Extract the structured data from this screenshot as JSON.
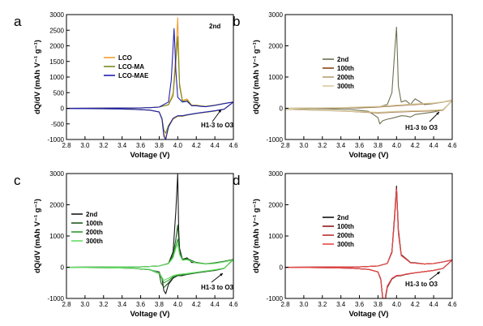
{
  "chart_data": [
    {
      "type": "line",
      "panel": "a",
      "xlabel": "Voltage (V)",
      "ylabel": "dQ/dV (mAh V⁻¹ g⁻¹)",
      "xlim": [
        2.8,
        4.6
      ],
      "ylim": [
        -1000,
        3000
      ],
      "xticks": [
        "2.8",
        "3.0",
        "3.2",
        "3.4",
        "3.6",
        "3.8",
        "4.0",
        "4.2",
        "4.4",
        "4.6"
      ],
      "yticks": [
        "-1000",
        "-500",
        "0",
        "500",
        "1000",
        "1500",
        "2000",
        "2500",
        "3000"
      ],
      "annotation_top": "2nd",
      "annotation": "H1-3 to O3",
      "legend_position": "left",
      "series": [
        {
          "name": "LCO",
          "color": "#f0a030",
          "x": [
            2.8,
            3.6,
            3.7,
            3.8,
            3.9,
            3.95,
            3.98,
            4.0,
            4.02,
            4.05,
            4.1,
            4.15,
            4.2,
            4.25,
            4.3,
            4.4,
            4.5,
            4.6,
            4.5,
            4.4,
            4.3,
            4.2,
            4.1,
            4.05,
            4.0,
            3.95,
            3.9,
            3.87,
            3.85,
            3.83,
            3.8,
            3.7,
            3.5,
            3.2,
            2.8
          ],
          "y": [
            0,
            10,
            20,
            40,
            120,
            500,
            1800,
            2900,
            800,
            250,
            300,
            100,
            100,
            80,
            60,
            100,
            150,
            200,
            -30,
            -90,
            -130,
            -170,
            -220,
            -260,
            -260,
            -350,
            -600,
            -950,
            -800,
            -350,
            -120,
            -60,
            -30,
            -15,
            -8
          ]
        },
        {
          "name": "LCO-MA",
          "color": "#7a8a20",
          "x": [
            2.8,
            3.6,
            3.7,
            3.8,
            3.9,
            3.95,
            3.98,
            4.0,
            4.02,
            4.05,
            4.1,
            4.15,
            4.2,
            4.25,
            4.3,
            4.4,
            4.5,
            4.6,
            4.5,
            4.4,
            4.3,
            4.2,
            4.1,
            4.05,
            4.0,
            3.95,
            3.9,
            3.87,
            3.85,
            3.83,
            3.8,
            3.7,
            3.5,
            3.2,
            2.8
          ],
          "y": [
            0,
            10,
            20,
            40,
            110,
            400,
            1500,
            2300,
            700,
            220,
            260,
            90,
            90,
            70,
            60,
            100,
            150,
            200,
            -30,
            -85,
            -125,
            -165,
            -215,
            -250,
            -250,
            -330,
            -550,
            -800,
            -700,
            -320,
            -120,
            -60,
            -30,
            -15,
            -8
          ]
        },
        {
          "name": "LCO-MAE",
          "color": "#2020b0",
          "x": [
            2.8,
            3.6,
            3.7,
            3.8,
            3.9,
            3.93,
            3.96,
            3.98,
            4.0,
            4.05,
            4.1,
            4.15,
            4.2,
            4.25,
            4.3,
            4.4,
            4.5,
            4.6,
            4.5,
            4.4,
            4.3,
            4.2,
            4.1,
            4.05,
            4.0,
            3.95,
            3.9,
            3.87,
            3.85,
            3.83,
            3.8,
            3.7,
            3.5,
            3.2,
            2.8
          ],
          "y": [
            0,
            10,
            20,
            40,
            200,
            900,
            2550,
            1200,
            350,
            200,
            220,
            80,
            80,
            60,
            50,
            90,
            150,
            200,
            -30,
            -80,
            -120,
            -160,
            -210,
            -240,
            -240,
            -320,
            -600,
            -1000,
            -900,
            -350,
            -120,
            -60,
            -30,
            -15,
            -8
          ]
        }
      ]
    },
    {
      "type": "line",
      "panel": "b",
      "xlabel": "Voltage (V)",
      "ylabel": "dQ/dV (mAh V⁻¹ g⁻¹)",
      "xlim": [
        2.8,
        4.6
      ],
      "ylim": [
        -1000,
        3000
      ],
      "xticks": [
        "2.8",
        "3.0",
        "3.2",
        "3.4",
        "3.6",
        "3.8",
        "4.0",
        "4.2",
        "4.4",
        "4.6"
      ],
      "yticks": [
        "-1000",
        "0",
        "1000",
        "2000",
        "3000"
      ],
      "annotation": "H1-3 to O3",
      "legend_position": "left",
      "series": [
        {
          "name": "2nd",
          "color": "#707050",
          "x": [
            2.8,
            3.6,
            3.8,
            3.9,
            3.95,
            3.98,
            4.0,
            4.02,
            4.05,
            4.1,
            4.15,
            4.2,
            4.3,
            4.4,
            4.5,
            4.6,
            4.5,
            4.4,
            4.3,
            4.2,
            4.15,
            4.1,
            4.05,
            4.0,
            3.95,
            3.9,
            3.85,
            3.82,
            3.8,
            3.7,
            3.5,
            3.2,
            2.8
          ],
          "y": [
            0,
            10,
            40,
            120,
            500,
            1800,
            2600,
            700,
            200,
            250,
            120,
            300,
            120,
            150,
            200,
            250,
            -50,
            -120,
            -160,
            -200,
            -280,
            -250,
            -240,
            -280,
            -320,
            -350,
            -400,
            -500,
            -300,
            -100,
            -40,
            -15,
            -8
          ]
        },
        {
          "name": "100th",
          "color": "#8b4513",
          "x": [
            2.8,
            3.4,
            3.8,
            4.0,
            4.2,
            4.4,
            4.5,
            4.55,
            4.6,
            4.5,
            4.4,
            4.2,
            4.0,
            3.8,
            3.4,
            2.8
          ],
          "y": [
            0,
            10,
            40,
            80,
            120,
            160,
            200,
            230,
            250,
            -60,
            -80,
            -100,
            -120,
            -150,
            -80,
            -30
          ]
        },
        {
          "name": "200th",
          "color": "#b8a070",
          "x": [
            2.8,
            3.4,
            3.8,
            4.0,
            4.2,
            4.4,
            4.5,
            4.6,
            4.5,
            4.4,
            4.2,
            4.0,
            3.8,
            3.4,
            2.8
          ],
          "y": [
            0,
            15,
            50,
            90,
            130,
            160,
            200,
            240,
            -50,
            -70,
            -90,
            -110,
            -140,
            -90,
            -30
          ]
        },
        {
          "name": "300th",
          "color": "#d8cca0",
          "x": [
            2.8,
            3.4,
            3.8,
            4.0,
            4.2,
            4.4,
            4.5,
            4.6,
            4.5,
            4.4,
            4.2,
            4.0,
            3.8,
            3.4,
            2.8
          ],
          "y": [
            0,
            20,
            60,
            100,
            140,
            170,
            210,
            240,
            -40,
            -60,
            -80,
            -100,
            -130,
            -80,
            -20
          ]
        }
      ]
    },
    {
      "type": "line",
      "panel": "c",
      "xlabel": "Voltage (V)",
      "ylabel": "dQ/dV (mAh V⁻¹ g⁻¹)",
      "xlim": [
        2.8,
        4.6
      ],
      "ylim": [
        -1000,
        3000
      ],
      "xticks": [
        "2.8",
        "3.0",
        "3.2",
        "3.4",
        "3.6",
        "3.8",
        "4.0",
        "4.2",
        "4.4",
        "4.6"
      ],
      "yticks": [
        "-1000",
        "0",
        "1000",
        "2000",
        "3000"
      ],
      "annotation": "H1-3 to O3",
      "legend_position": "left",
      "series": [
        {
          "name": "2nd",
          "color": "#1a1a1a",
          "x": [
            2.8,
            3.6,
            3.8,
            3.9,
            3.95,
            3.98,
            4.0,
            4.01,
            4.02,
            4.05,
            4.1,
            4.15,
            4.2,
            4.3,
            4.4,
            4.5,
            4.6,
            4.5,
            4.4,
            4.3,
            4.2,
            4.1,
            4.05,
            4.0,
            3.95,
            3.9,
            3.87,
            3.85,
            3.83,
            3.8,
            3.7,
            3.5,
            3.2,
            2.8
          ],
          "y": [
            0,
            10,
            40,
            120,
            500,
            1800,
            3000,
            1200,
            600,
            250,
            300,
            150,
            150,
            100,
            130,
            180,
            250,
            -40,
            -100,
            -140,
            -180,
            -230,
            -270,
            -270,
            -350,
            -550,
            -850,
            -750,
            -350,
            -150,
            -80,
            -30,
            -15,
            -8
          ]
        },
        {
          "name": "100th",
          "color": "#1e5a1e",
          "x": [
            2.8,
            3.6,
            3.8,
            3.9,
            3.95,
            3.98,
            4.0,
            4.02,
            4.05,
            4.1,
            4.2,
            4.3,
            4.4,
            4.5,
            4.6,
            4.5,
            4.4,
            4.3,
            4.2,
            4.1,
            4.0,
            3.95,
            3.9,
            3.85,
            3.82,
            3.8,
            3.7,
            3.5,
            3.2,
            2.8
          ],
          "y": [
            0,
            10,
            40,
            120,
            400,
            900,
            1350,
            500,
            250,
            280,
            150,
            110,
            140,
            190,
            250,
            -40,
            -100,
            -140,
            -180,
            -230,
            -270,
            -330,
            -500,
            -650,
            -500,
            -200,
            -80,
            -30,
            -15,
            -8
          ]
        },
        {
          "name": "200th",
          "color": "#2e9a2e",
          "x": [
            2.8,
            3.6,
            3.8,
            3.9,
            3.95,
            3.98,
            4.0,
            4.02,
            4.05,
            4.1,
            4.2,
            4.3,
            4.4,
            4.5,
            4.6,
            4.5,
            4.4,
            4.3,
            4.2,
            4.1,
            4.0,
            3.95,
            3.9,
            3.85,
            3.8,
            3.7,
            3.5,
            3.2,
            2.8
          ],
          "y": [
            0,
            10,
            40,
            120,
            350,
            700,
            900,
            450,
            230,
            250,
            140,
            100,
            130,
            180,
            240,
            -35,
            -90,
            -130,
            -170,
            -220,
            -250,
            -300,
            -420,
            -500,
            -200,
            -80,
            -30,
            -15,
            -8
          ]
        },
        {
          "name": "300th",
          "color": "#66dd66",
          "x": [
            2.8,
            3.6,
            3.8,
            3.9,
            3.95,
            3.98,
            4.0,
            4.02,
            4.05,
            4.1,
            4.2,
            4.3,
            4.4,
            4.5,
            4.6,
            4.5,
            4.4,
            4.3,
            4.2,
            4.1,
            4.0,
            3.95,
            3.9,
            3.85,
            3.8,
            3.7,
            3.5,
            3.2,
            2.8
          ],
          "y": [
            0,
            10,
            40,
            110,
            300,
            600,
            750,
            400,
            220,
            240,
            130,
            100,
            120,
            170,
            230,
            -30,
            -80,
            -120,
            -160,
            -200,
            -230,
            -270,
            -350,
            -420,
            -180,
            -70,
            -30,
            -15,
            -8
          ]
        }
      ]
    },
    {
      "type": "line",
      "panel": "d",
      "xlabel": "Voltage (V)",
      "ylabel": "dQ/dV (mAh V⁻¹ g⁻¹)",
      "xlim": [
        2.8,
        4.6
      ],
      "ylim": [
        -1000,
        3000
      ],
      "xticks": [
        "2.8",
        "3.0",
        "3.2",
        "3.4",
        "3.6",
        "3.8",
        "4.0",
        "4.2",
        "4.4",
        "4.6"
      ],
      "yticks": [
        "-1000",
        "0",
        "1000",
        "2000",
        "3000"
      ],
      "annotation": "H1-3 to O3",
      "legend_position": "left",
      "series": [
        {
          "name": "2nd",
          "color": "#111111",
          "x": [
            2.8,
            3.6,
            3.8,
            3.9,
            3.95,
            3.98,
            4.0,
            4.02,
            4.05,
            4.1,
            4.15,
            4.2,
            4.3,
            4.4,
            4.5,
            4.6,
            4.5,
            4.4,
            4.3,
            4.2,
            4.1,
            4.05,
            4.0,
            3.95,
            3.9,
            3.87,
            3.85,
            3.83,
            3.8,
            3.7,
            3.5,
            3.2,
            2.8
          ],
          "y": [
            0,
            10,
            40,
            120,
            500,
            1700,
            2600,
            1200,
            400,
            280,
            150,
            140,
            100,
            120,
            170,
            230,
            -40,
            -100,
            -140,
            -180,
            -230,
            -270,
            -280,
            -380,
            -650,
            -1200,
            -1000,
            -400,
            -150,
            -70,
            -30,
            -15,
            -8
          ]
        },
        {
          "name": "100th",
          "color": "#8b1a1a",
          "x": [
            2.8,
            3.6,
            3.8,
            3.9,
            3.95,
            3.98,
            4.0,
            4.02,
            4.05,
            4.1,
            4.15,
            4.2,
            4.3,
            4.4,
            4.5,
            4.6,
            4.5,
            4.4,
            4.3,
            4.2,
            4.1,
            4.05,
            4.0,
            3.95,
            3.9,
            3.87,
            3.85,
            3.83,
            3.8,
            3.7,
            3.5,
            3.2,
            2.8
          ],
          "y": [
            0,
            10,
            40,
            120,
            480,
            1650,
            2550,
            1150,
            390,
            270,
            145,
            135,
            100,
            120,
            170,
            230,
            -40,
            -100,
            -140,
            -180,
            -225,
            -265,
            -275,
            -370,
            -630,
            -1150,
            -980,
            -390,
            -150,
            -70,
            -30,
            -15,
            -8
          ]
        },
        {
          "name": "200th",
          "color": "#b83030",
          "x": [
            2.8,
            3.6,
            3.8,
            3.9,
            3.95,
            3.98,
            4.0,
            4.02,
            4.05,
            4.1,
            4.15,
            4.2,
            4.3,
            4.4,
            4.5,
            4.6,
            4.5,
            4.4,
            4.3,
            4.2,
            4.1,
            4.05,
            4.0,
            3.95,
            3.9,
            3.87,
            3.85,
            3.83,
            3.8,
            3.7,
            3.5,
            3.2,
            2.8
          ],
          "y": [
            0,
            10,
            40,
            120,
            470,
            1600,
            2500,
            1100,
            380,
            265,
            140,
            130,
            100,
            120,
            170,
            230,
            -40,
            -100,
            -140,
            -180,
            -220,
            -260,
            -270,
            -360,
            -610,
            -1120,
            -960,
            -380,
            -150,
            -70,
            -30,
            -15,
            -8
          ]
        },
        {
          "name": "300th",
          "color": "#e84848",
          "x": [
            2.8,
            3.6,
            3.8,
            3.9,
            3.95,
            3.98,
            4.0,
            4.02,
            4.05,
            4.1,
            4.15,
            4.2,
            4.3,
            4.4,
            4.5,
            4.6,
            4.5,
            4.4,
            4.3,
            4.2,
            4.1,
            4.05,
            4.0,
            3.95,
            3.9,
            3.87,
            3.85,
            3.83,
            3.8,
            3.7,
            3.5,
            3.2,
            2.8
          ],
          "y": [
            0,
            10,
            40,
            120,
            460,
            1580,
            2480,
            1080,
            370,
            260,
            140,
            130,
            100,
            120,
            170,
            230,
            -40,
            -100,
            -140,
            -180,
            -220,
            -255,
            -265,
            -355,
            -600,
            -1100,
            -950,
            -370,
            -150,
            -70,
            -30,
            -15,
            -8
          ]
        }
      ]
    }
  ]
}
